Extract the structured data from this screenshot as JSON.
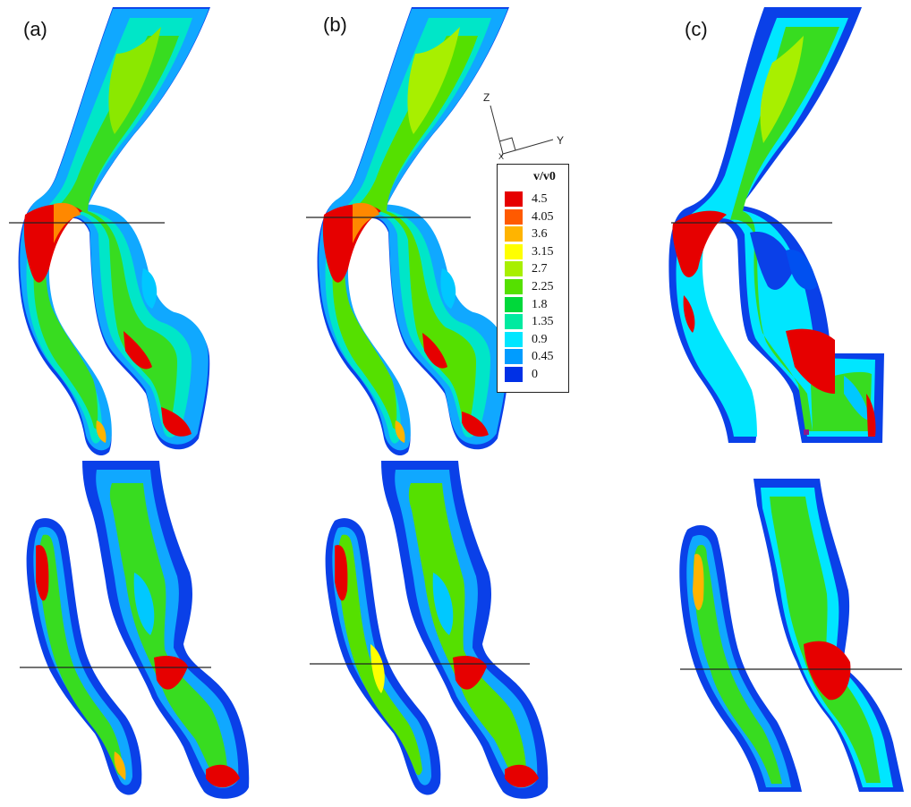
{
  "panels": [
    {
      "label": "(a)"
    },
    {
      "label": "(b)"
    },
    {
      "label": "(c)"
    }
  ],
  "legend": {
    "title": "v/v0",
    "levels": [
      {
        "value": "4.5",
        "color": "#e60000"
      },
      {
        "value": "4.05",
        "color": "#ff5a00"
      },
      {
        "value": "3.6",
        "color": "#ffb400"
      },
      {
        "value": "3.15",
        "color": "#ffff00"
      },
      {
        "value": "2.7",
        "color": "#a8ef00"
      },
      {
        "value": "2.25",
        "color": "#55e000"
      },
      {
        "value": "1.8",
        "color": "#00d83a"
      },
      {
        "value": "1.35",
        "color": "#00eaa0"
      },
      {
        "value": "0.9",
        "color": "#00e6ff"
      },
      {
        "value": "0.45",
        "color": "#009cff"
      },
      {
        "value": "0",
        "color": "#0030e6"
      }
    ]
  },
  "axes": {
    "z": "Z",
    "y": "Y",
    "x": "X"
  }
}
